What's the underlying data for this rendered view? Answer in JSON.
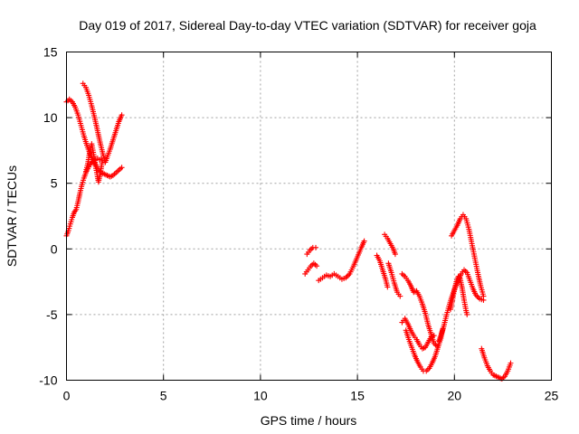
{
  "chart_data": {
    "type": "scatter",
    "title": "Day 019 of 2017, Sidereal Day-to-day VTEC variation (SDTVAR) for receiver goja",
    "xlabel": "GPS time / hours",
    "ylabel": "SDTVAR / TECUs",
    "xlim": [
      0,
      25
    ],
    "ylim": [
      -10,
      15
    ],
    "xticks": [
      0,
      5,
      10,
      15,
      20,
      25
    ],
    "yticks": [
      -10,
      -5,
      0,
      5,
      10,
      15
    ],
    "grid": true,
    "marker": "plus",
    "color": "#ff0000",
    "series": [
      {
        "segments": [
          [
            [
              0.0,
              11.2
            ],
            [
              0.15,
              11.4
            ],
            [
              0.3,
              11.2
            ],
            [
              0.45,
              10.8
            ],
            [
              0.6,
              10.2
            ],
            [
              0.75,
              9.4
            ],
            [
              0.9,
              8.6
            ],
            [
              1.05,
              7.9
            ],
            [
              1.2,
              7.3
            ],
            [
              1.35,
              6.8
            ],
            [
              1.5,
              6.4
            ],
            [
              1.65,
              6.0
            ],
            [
              1.8,
              5.8
            ],
            [
              1.95,
              5.7
            ],
            [
              2.1,
              5.6
            ],
            [
              2.25,
              5.5
            ],
            [
              2.4,
              5.6
            ],
            [
              2.55,
              5.8
            ],
            [
              2.7,
              6.0
            ],
            [
              2.85,
              6.2
            ]
          ],
          [
            [
              0.0,
              1.0
            ],
            [
              0.1,
              1.4
            ],
            [
              0.2,
              1.9
            ],
            [
              0.3,
              2.4
            ],
            [
              0.4,
              2.8
            ],
            [
              0.5,
              3.0
            ],
            [
              0.6,
              3.6
            ],
            [
              0.7,
              4.3
            ],
            [
              0.8,
              4.9
            ],
            [
              0.9,
              5.4
            ],
            [
              1.0,
              5.8
            ],
            [
              1.1,
              6.1
            ],
            [
              1.2,
              6.4
            ],
            [
              1.3,
              6.6
            ],
            [
              1.4,
              6.7
            ],
            [
              1.5,
              6.8
            ],
            [
              1.6,
              6.9
            ],
            [
              1.7,
              6.8
            ],
            [
              1.8,
              6.9
            ]
          ],
          [
            [
              0.85,
              12.6
            ],
            [
              1.0,
              12.3
            ],
            [
              1.15,
              11.7
            ],
            [
              1.3,
              10.9
            ],
            [
              1.45,
              10.0
            ],
            [
              1.6,
              9.0
            ],
            [
              1.75,
              8.0
            ],
            [
              1.9,
              7.1
            ],
            [
              2.0,
              6.6
            ],
            [
              2.1,
              7.0
            ],
            [
              2.25,
              7.6
            ],
            [
              2.4,
              8.3
            ],
            [
              2.55,
              9.0
            ],
            [
              2.7,
              9.7
            ],
            [
              2.85,
              10.2
            ]
          ],
          [
            [
              1.0,
              5.9
            ],
            [
              1.1,
              6.5
            ],
            [
              1.2,
              7.4
            ],
            [
              1.3,
              8.0
            ],
            [
              1.4,
              7.2
            ],
            [
              1.5,
              6.3
            ],
            [
              1.6,
              5.5
            ],
            [
              1.65,
              5.1
            ],
            [
              1.75,
              5.8
            ],
            [
              1.85,
              6.7
            ]
          ],
          [
            [
              12.3,
              -1.9
            ],
            [
              12.45,
              -1.6
            ],
            [
              12.6,
              -1.3
            ],
            [
              12.75,
              -1.1
            ],
            [
              12.9,
              -1.3
            ]
          ],
          [
            [
              12.4,
              -0.4
            ],
            [
              12.55,
              -0.1
            ],
            [
              12.7,
              0.1
            ],
            [
              12.85,
              0.1
            ]
          ],
          [
            [
              13.0,
              -2.4
            ],
            [
              13.2,
              -2.2
            ],
            [
              13.4,
              -2.0
            ],
            [
              13.6,
              -2.1
            ],
            [
              13.8,
              -1.9
            ],
            [
              14.0,
              -2.1
            ],
            [
              14.2,
              -2.3
            ],
            [
              14.4,
              -2.2
            ],
            [
              14.6,
              -1.9
            ],
            [
              14.8,
              -1.3
            ],
            [
              15.0,
              -0.6
            ],
            [
              15.2,
              0.1
            ],
            [
              15.35,
              0.6
            ]
          ],
          [
            [
              16.4,
              1.1
            ],
            [
              16.55,
              0.8
            ],
            [
              16.7,
              0.4
            ],
            [
              16.85,
              0.0
            ],
            [
              16.95,
              -0.4
            ]
          ],
          [
            [
              16.6,
              -1.1
            ],
            [
              16.75,
              -1.8
            ],
            [
              16.9,
              -2.6
            ],
            [
              17.05,
              -3.3
            ],
            [
              17.2,
              -3.6
            ]
          ],
          [
            [
              16.0,
              -0.5
            ],
            [
              16.15,
              -0.9
            ],
            [
              16.3,
              -1.6
            ],
            [
              16.45,
              -2.3
            ],
            [
              16.55,
              -2.9
            ]
          ],
          [
            [
              17.3,
              -5.6
            ],
            [
              17.45,
              -5.3
            ],
            [
              17.6,
              -5.7
            ],
            [
              17.75,
              -6.2
            ],
            [
              17.9,
              -6.6
            ],
            [
              18.05,
              -6.9
            ],
            [
              18.2,
              -7.3
            ],
            [
              18.35,
              -7.6
            ],
            [
              18.5,
              -7.5
            ],
            [
              18.65,
              -7.1
            ],
            [
              18.8,
              -6.7
            ],
            [
              18.95,
              -6.6
            ]
          ],
          [
            [
              17.3,
              -1.9
            ],
            [
              17.45,
              -2.1
            ],
            [
              17.6,
              -2.4
            ],
            [
              17.75,
              -2.8
            ],
            [
              17.9,
              -3.3
            ],
            [
              18.05,
              -3.2
            ],
            [
              18.2,
              -3.6
            ],
            [
              18.35,
              -4.2
            ],
            [
              18.5,
              -4.9
            ],
            [
              18.65,
              -5.8
            ],
            [
              18.8,
              -6.5
            ],
            [
              18.95,
              -7.2
            ],
            [
              19.1,
              -7.4
            ]
          ],
          [
            [
              17.5,
              -6.2
            ],
            [
              17.65,
              -6.9
            ],
            [
              17.8,
              -7.5
            ],
            [
              17.95,
              -8.1
            ],
            [
              18.1,
              -8.6
            ],
            [
              18.25,
              -9.0
            ],
            [
              18.4,
              -9.3
            ],
            [
              18.55,
              -9.3
            ],
            [
              18.7,
              -9.1
            ],
            [
              18.85,
              -8.7
            ],
            [
              19.0,
              -8.2
            ],
            [
              19.15,
              -7.5
            ],
            [
              19.3,
              -6.8
            ],
            [
              19.4,
              -6.1
            ]
          ],
          [
            [
              19.2,
              -7.0
            ],
            [
              19.3,
              -6.6
            ],
            [
              19.45,
              -5.9
            ],
            [
              19.6,
              -5.0
            ],
            [
              19.75,
              -4.2
            ],
            [
              19.9,
              -3.5
            ],
            [
              20.05,
              -2.9
            ],
            [
              20.2,
              -2.4
            ],
            [
              20.35,
              -1.9
            ],
            [
              20.5,
              -1.6
            ],
            [
              20.65,
              -1.8
            ],
            [
              20.8,
              -2.4
            ],
            [
              20.95,
              -3.0
            ],
            [
              21.1,
              -3.5
            ],
            [
              21.3,
              -3.8
            ],
            [
              21.5,
              -3.9
            ]
          ],
          [
            [
              19.8,
              -4.6
            ],
            [
              19.9,
              -3.9
            ],
            [
              20.0,
              -3.1
            ],
            [
              20.1,
              -2.5
            ],
            [
              20.2,
              -2.1
            ],
            [
              20.3,
              -2.3
            ],
            [
              20.4,
              -3.0
            ],
            [
              20.5,
              -3.9
            ],
            [
              20.6,
              -4.7
            ],
            [
              20.65,
              -5.0
            ]
          ],
          [
            [
              19.85,
              1.0
            ],
            [
              20.0,
              1.4
            ],
            [
              20.15,
              1.8
            ],
            [
              20.3,
              2.3
            ],
            [
              20.45,
              2.6
            ],
            [
              20.6,
              2.3
            ],
            [
              20.75,
              1.5
            ],
            [
              20.9,
              0.4
            ],
            [
              21.05,
              -0.7
            ],
            [
              21.2,
              -1.8
            ],
            [
              21.35,
              -2.8
            ],
            [
              21.5,
              -3.6
            ]
          ],
          [
            [
              21.4,
              -7.6
            ],
            [
              21.55,
              -8.3
            ],
            [
              21.7,
              -8.9
            ],
            [
              21.85,
              -9.3
            ],
            [
              22.0,
              -9.6
            ],
            [
              22.15,
              -9.7
            ],
            [
              22.3,
              -9.8
            ],
            [
              22.45,
              -9.9
            ],
            [
              22.6,
              -9.7
            ],
            [
              22.75,
              -9.3
            ],
            [
              22.9,
              -8.7
            ]
          ]
        ]
      }
    ]
  }
}
